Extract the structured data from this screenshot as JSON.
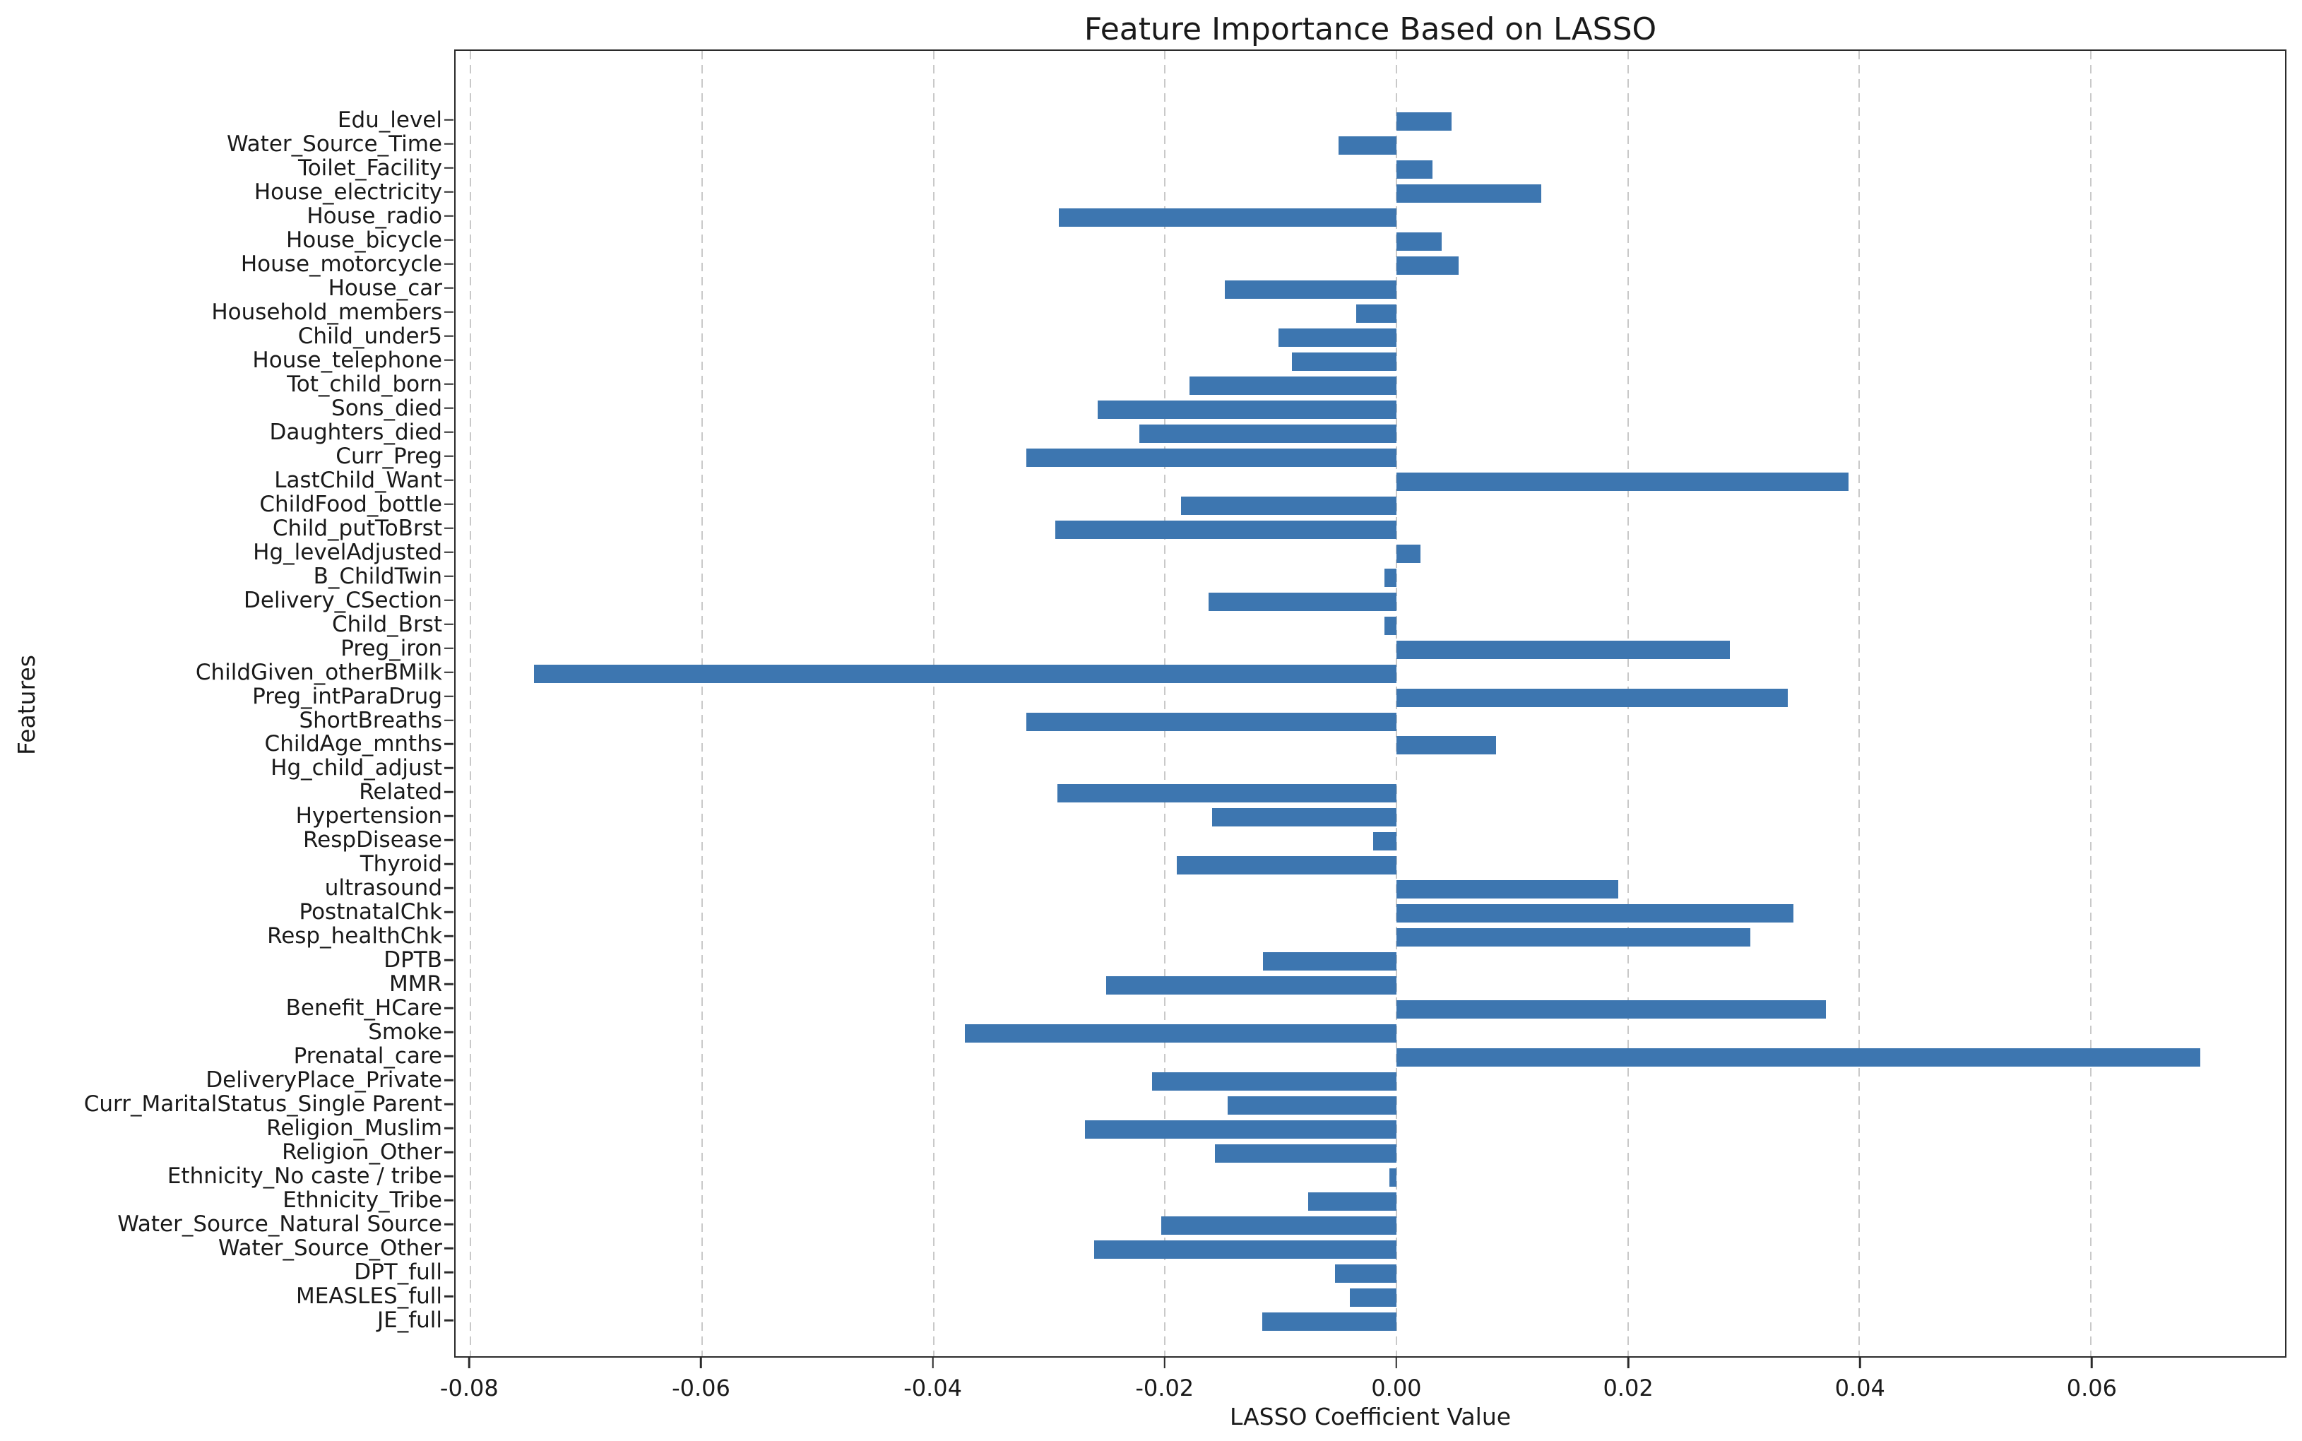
{
  "chart_data": {
    "type": "bar",
    "orientation": "horizontal",
    "title": "Feature Importance Based on LASSO",
    "xlabel": "LASSO Coefficient Value",
    "ylabel": "Features",
    "xlim": [
      -0.0813,
      0.0768
    ],
    "xticks": [
      -0.08,
      -0.06,
      -0.04,
      -0.02,
      0.0,
      0.02,
      0.04,
      0.06
    ],
    "grid": "vertical-dashed",
    "legend": "none",
    "bar_color": "#3d76b0",
    "categories": [
      "Edu_level",
      "Water_Source_Time",
      "Toilet_Facility",
      "House_electricity",
      "House_radio",
      "House_bicycle",
      "House_motorcycle",
      "House_car",
      "Household_members",
      "Child_under5",
      "House_telephone",
      "Tot_child_born",
      "Sons_died",
      "Daughters_died",
      "Curr_Preg",
      "LastChild_Want",
      "ChildFood_bottle",
      "Child_putToBrst",
      "Hg_levelAdjusted",
      "B_ChildTwin",
      "Delivery_CSection",
      "Child_Brst",
      "Preg_iron",
      "ChildGiven_otherBMilk",
      "Preg_intParaDrug",
      "ShortBreaths",
      "ChildAge_mnths",
      "Hg_child_adjust",
      "Related",
      "Hypertension",
      "RespDisease",
      "Thyroid",
      "ultrasound",
      "PostnatalChk",
      "Resp_healthChk",
      "DPTB",
      "MMR",
      "Benefit_HCare",
      "Smoke",
      "Prenatal_care",
      "DeliveryPlace_Private",
      "Curr_MaritalStatus_Single Parent",
      "Religion_Muslim",
      "Religion_Other",
      "Ethnicity_No caste / tribe",
      "Ethnicity_Tribe",
      "Water_Source_Natural Source",
      "Water_Source_Other",
      "DPT_full",
      "MEASLES_full",
      "JE_full"
    ],
    "values": [
      0.0048,
      -0.005,
      0.0031,
      0.0125,
      -0.0292,
      0.0039,
      0.0054,
      -0.0148,
      -0.0035,
      -0.0102,
      -0.009,
      -0.0179,
      -0.0258,
      -0.0222,
      -0.032,
      0.0391,
      -0.0186,
      -0.0295,
      0.0021,
      -0.001,
      -0.0162,
      -0.001,
      0.0288,
      -0.0745,
      0.0338,
      -0.032,
      0.0086,
      0.0,
      -0.0293,
      -0.0159,
      -0.002,
      -0.019,
      0.0192,
      0.0343,
      0.0306,
      -0.0115,
      -0.0251,
      0.0371,
      -0.0373,
      0.0695,
      -0.0211,
      -0.0146,
      -0.0269,
      -0.0157,
      -0.0006,
      -0.0076,
      -0.0203,
      -0.0261,
      -0.0053,
      -0.004,
      -0.0116
    ]
  },
  "colors": {
    "bar": "#3d76b0",
    "grid": "#c9c9c9",
    "spine": "#2b2b2b",
    "text": "#1a1a1a",
    "background": "#ffffff"
  }
}
